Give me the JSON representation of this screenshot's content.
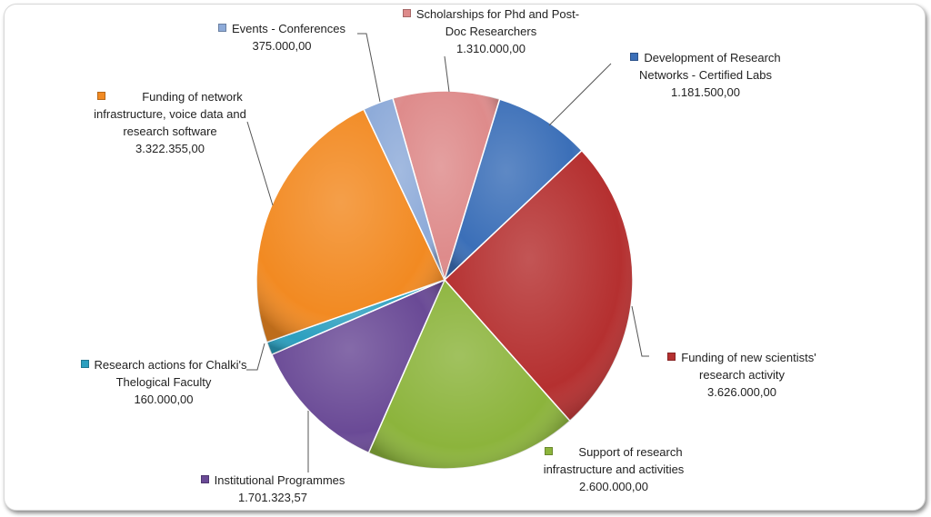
{
  "chart_data": {
    "type": "pie",
    "title": "",
    "legend": "none (data labels)",
    "start_angle_deg": -16,
    "slices": [
      {
        "label": "Scholarships for Phd and Post-Doc Researchers",
        "value": 1310000,
        "value_text": "1.310.000,00",
        "color": "#de8b8b"
      },
      {
        "label": "Development of Research Networks - Certified Labs",
        "value": 1181500,
        "value_text": "1.181.500,00",
        "color": "#3b6fb8"
      },
      {
        "label": "Funding of new scientists' research activity",
        "value": 3626000,
        "value_text": "3.626.000,00",
        "color": "#b53030"
      },
      {
        "label": "Support of research infrastructure and activities",
        "value": 2600000,
        "value_text": "2.600.000,00",
        "color": "#8cb43c"
      },
      {
        "label": "Institutional Programmes",
        "value": 1701323.57,
        "value_text": "1.701.323,57",
        "color": "#6a4a96"
      },
      {
        "label": "Research actions for Chalki's Thelogical Faculty",
        "value": 160000,
        "value_text": "160.000,00",
        "color": "#2b9fbf"
      },
      {
        "label": "Funding of network infrastructure, voice data and research software",
        "value": 3322355,
        "value_text": "3.322.355,00",
        "color": "#f28a22"
      },
      {
        "label": "Events - Conferences",
        "value": 375000,
        "value_text": "375.000,00",
        "color": "#8eabd9"
      }
    ]
  },
  "labels": {
    "scholarships": {
      "l1": "Scholarships for Phd and Post-",
      "l2": "Doc Researchers"
    },
    "development": {
      "l1": "Development of Research",
      "l2": "Networks - Certified Labs"
    },
    "new_scientists": {
      "l1": "Funding of new scientists'",
      "l2": "research activity"
    },
    "support": {
      "l1": "Support of research",
      "l2": "infrastructure and activities"
    },
    "institutional": {
      "l1": "Institutional Programmes"
    },
    "chalki": {
      "l1": "Research actions for Chalki's",
      "l2": "Thelogical Faculty"
    },
    "network": {
      "l1": "Funding of network",
      "l2": "infrastructure, voice data and",
      "l3": "research software"
    },
    "events": {
      "l1": "Events - Conferences"
    }
  }
}
